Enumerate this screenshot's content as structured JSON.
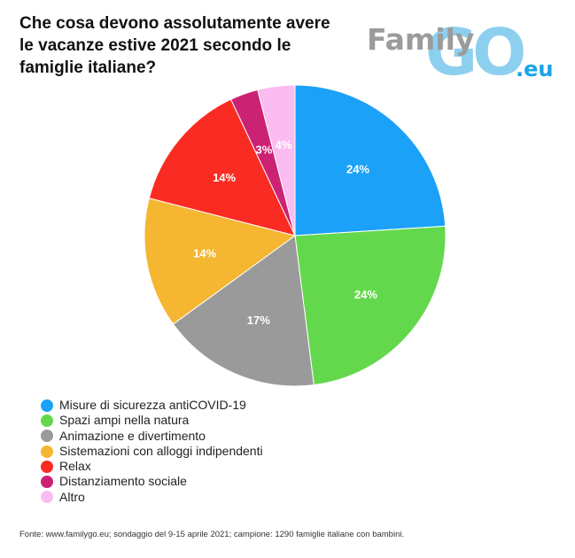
{
  "chart_data": {
    "type": "pie",
    "title_lines": [
      "Che cosa devono assolutamente avere",
      "le vacanze estive 2021 secondo le",
      "famiglie italiane?"
    ],
    "labels": [
      "Misure di sicurezza antiCOVID-19",
      "Spazi ampi nella natura",
      "Animazione e divertimento",
      "Sistemazioni con alloggi indipendenti",
      "Relax",
      "Distanziamento sociale",
      "Altro"
    ],
    "values": [
      24,
      24,
      17,
      14,
      14,
      3,
      4
    ],
    "data_labels": [
      "24%",
      "24%",
      "17%",
      "14%",
      "14%",
      "3%",
      "4%"
    ],
    "colors": [
      "#1ba1f7",
      "#64d84c",
      "#9a9a9a",
      "#f5b631",
      "#fa2b22",
      "#cc2273",
      "#fbbcf1"
    ],
    "legend_position": "bottom-left",
    "start_angle": "top",
    "direction": "clockwise"
  },
  "logo": {
    "text_family": "Family",
    "text_go": "GO",
    "text_domain": ".eu",
    "colors": {
      "family": "#9b9b9b",
      "go": "#8dcfee",
      "domain": "#17a4e8"
    }
  },
  "source": "Fonte: www.familygo.eu; sondaggio del 9-15 aprile 2021; campione: 1290 famiglie italiane con bambini."
}
